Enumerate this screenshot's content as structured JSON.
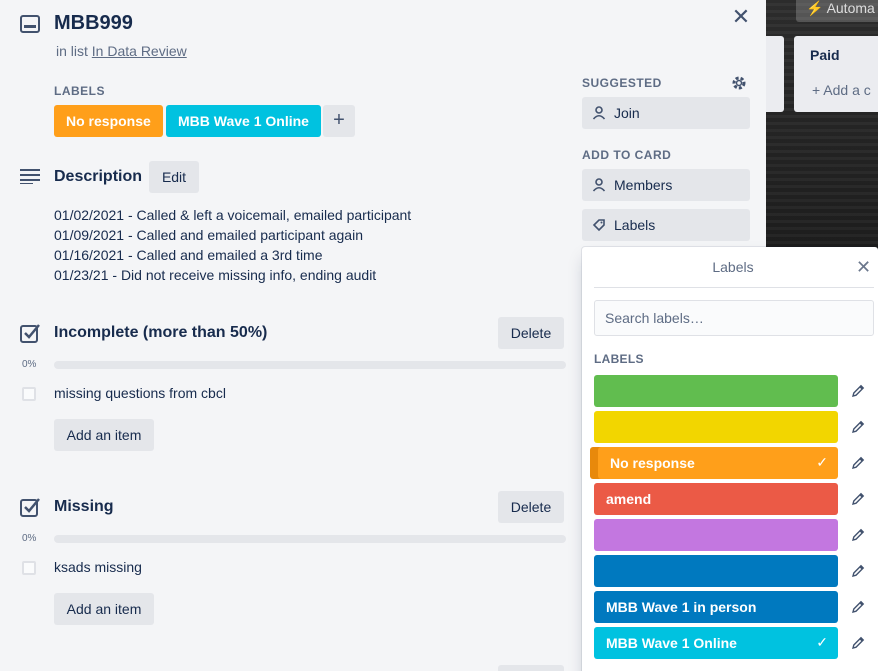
{
  "card": {
    "title": "MBB999",
    "in_list_prefix": "in list",
    "list_name": "In Data Review",
    "labels_heading": "LABELS",
    "labels": [
      {
        "text": "No response",
        "color": "#ff9f1a"
      },
      {
        "text": "MBB Wave 1 Online",
        "color": "#00c2e0"
      }
    ],
    "add_label_symbol": "+",
    "description": {
      "heading": "Description",
      "edit_label": "Edit",
      "lines": [
        "01/02/2021 - Called & left a voicemail, emailed participant",
        "01/09/2021 - Called and emailed participant again",
        "01/16/2021 - Called and emailed a 3rd time",
        "01/23/21 - Did not receive missing info, ending audit"
      ]
    },
    "checklists": [
      {
        "title": "Incomplete (more than 50%)",
        "delete_label": "Delete",
        "percent": "0%",
        "progress": 0,
        "items": [
          "missing questions from cbcl"
        ],
        "add_item_label": "Add an item"
      },
      {
        "title": "Missing",
        "delete_label": "Delete",
        "percent": "0%",
        "progress": 0,
        "items": [
          "ksads missing"
        ],
        "add_item_label": "Add an item"
      }
    ]
  },
  "sidebar": {
    "suggested_heading": "SUGGESTED",
    "join_label": "Join",
    "add_to_card_heading": "ADD TO CARD",
    "members_label": "Members",
    "labels_label": "Labels"
  },
  "popover": {
    "title": "Labels",
    "search_placeholder": "Search labels…",
    "section_heading": "LABELS",
    "labels": [
      {
        "text": "",
        "color": "#61bd4f",
        "selected": false
      },
      {
        "text": "",
        "color": "#f2d600",
        "selected": false
      },
      {
        "text": "No response",
        "color": "#ff9f1a",
        "selected": true
      },
      {
        "text": "amend",
        "color": "#eb5a46",
        "selected": false
      },
      {
        "text": "",
        "color": "#c377e0",
        "selected": false
      },
      {
        "text": "",
        "color": "#0079bf",
        "selected": false
      },
      {
        "text": "MBB Wave 1 in person",
        "color": "#0079bf",
        "selected": false
      },
      {
        "text": "MBB Wave 1 Online",
        "color": "#00c2e0",
        "selected": true
      }
    ],
    "check_symbol": "✓"
  },
  "board": {
    "automation_label": "Automa",
    "list_title": "Paid",
    "add_card_label": "+ Add a c"
  },
  "icons": {
    "close": "close-icon",
    "gear": "gear-icon",
    "pencil": "pencil-icon"
  }
}
